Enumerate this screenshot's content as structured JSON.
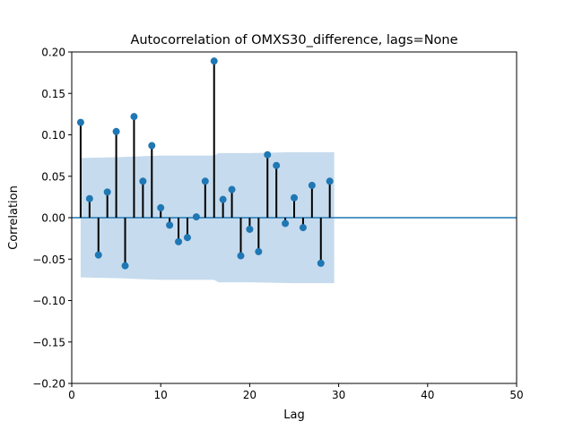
{
  "chart_data": {
    "type": "stem",
    "title": "Autocorrelation of OMXS30_difference, lags=None",
    "xlabel": "Lag",
    "ylabel": "Correlation",
    "xlim": [
      0,
      50
    ],
    "ylim": [
      -0.2,
      0.2
    ],
    "xticks": [
      0,
      10,
      20,
      30,
      40,
      50
    ],
    "yticks": [
      -0.2,
      -0.15,
      -0.1,
      -0.05,
      0.0,
      0.05,
      0.1,
      0.15,
      0.2
    ],
    "xtick_labels": [
      "0",
      "10",
      "20",
      "30",
      "40",
      "50"
    ],
    "ytick_labels": [
      "−0.20",
      "−0.15",
      "−0.10",
      "−0.05",
      "0.00",
      "0.05",
      "0.10",
      "0.15",
      "0.20"
    ],
    "grid": false,
    "lags": [
      1,
      2,
      3,
      4,
      5,
      6,
      7,
      8,
      9,
      10,
      11,
      12,
      13,
      14,
      15,
      16,
      17,
      18,
      19,
      20,
      21,
      22,
      23,
      24,
      25,
      26,
      27,
      28,
      29
    ],
    "values": [
      0.115,
      0.023,
      -0.045,
      0.031,
      0.104,
      -0.058,
      0.122,
      0.044,
      0.087,
      0.012,
      -0.009,
      -0.029,
      -0.024,
      0.001,
      0.044,
      0.189,
      0.022,
      0.034,
      -0.046,
      -0.014,
      -0.041,
      0.076,
      0.063,
      -0.007,
      0.024,
      -0.012,
      0.039,
      -0.055,
      0.044
    ],
    "confidence_band": {
      "lags": [
        1,
        5,
        10,
        15,
        16,
        16.5,
        20,
        25,
        29.5
      ],
      "upper": [
        0.072,
        0.073,
        0.075,
        0.075,
        0.075,
        0.078,
        0.078,
        0.079,
        0.079
      ],
      "lower": [
        -0.072,
        -0.073,
        -0.075,
        -0.075,
        -0.075,
        -0.078,
        -0.078,
        -0.079,
        -0.079
      ]
    },
    "colors": {
      "marker": "#1f77b4",
      "stem": "#000000",
      "zero_line": "#1f77b4",
      "band": "#c6dbed"
    }
  }
}
